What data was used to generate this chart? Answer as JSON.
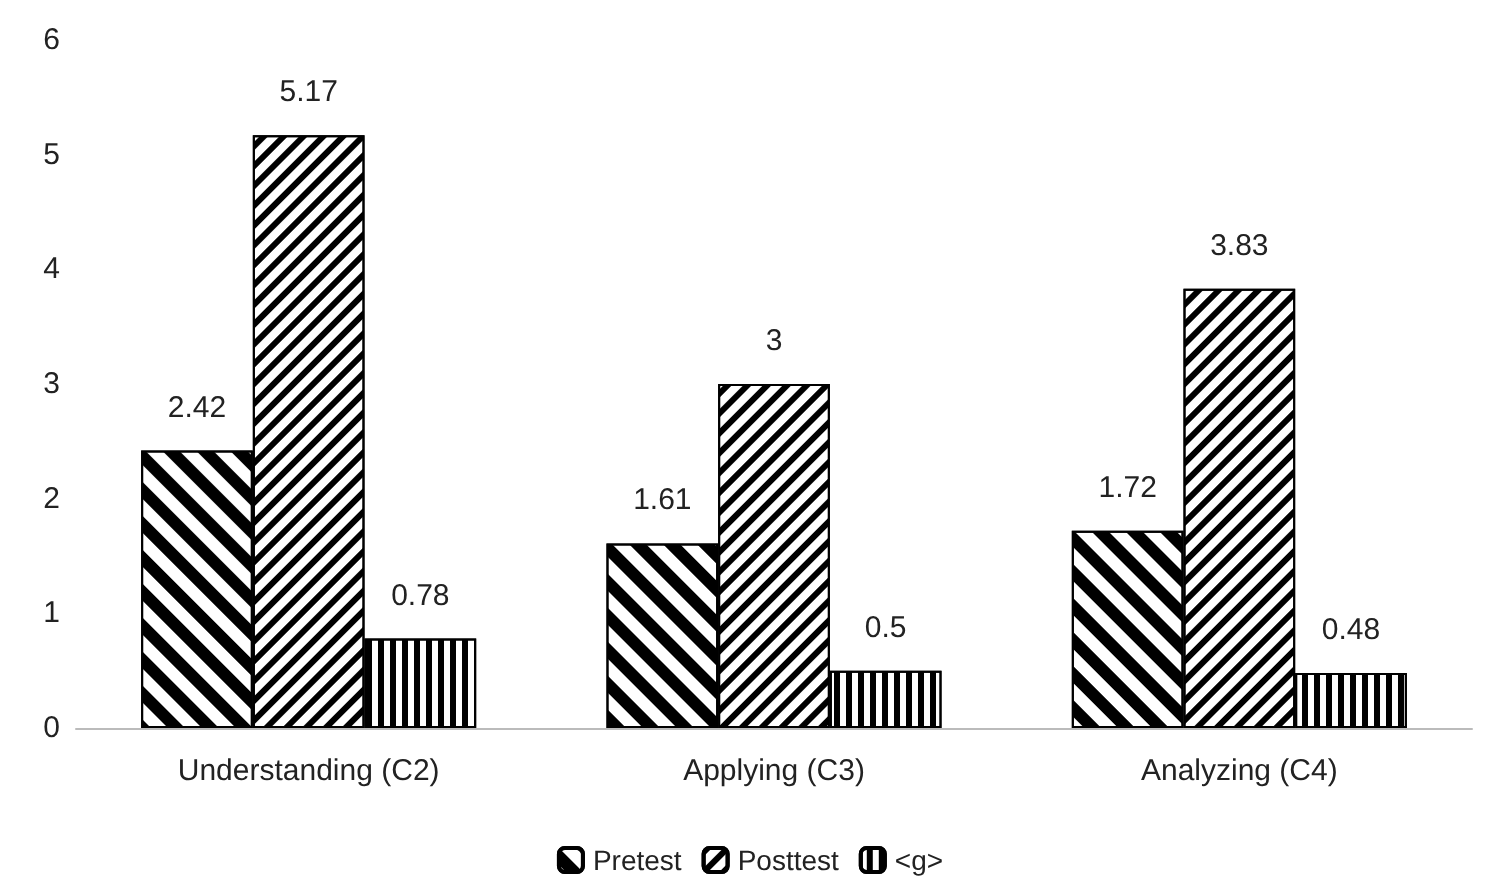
{
  "chart_data": {
    "type": "bar",
    "categories": [
      "Understanding (C2)",
      "Applying (C3)",
      "Analyzing (C4)"
    ],
    "series": [
      {
        "name": "Pretest",
        "color": "#000000",
        "values": [
          2.42,
          1.61,
          1.72
        ]
      },
      {
        "name": "Posttest",
        "color": "#000000",
        "values": [
          5.17,
          3,
          3.83
        ]
      },
      {
        "name": "<g>",
        "color": "#000000",
        "values": [
          0.78,
          0.5,
          0.48
        ]
      }
    ],
    "ylim": [
      0,
      6
    ],
    "yticks": [
      0,
      1,
      2,
      3,
      4,
      5,
      6
    ],
    "grid": false,
    "legend": "bottom",
    "data_labels": true
  }
}
